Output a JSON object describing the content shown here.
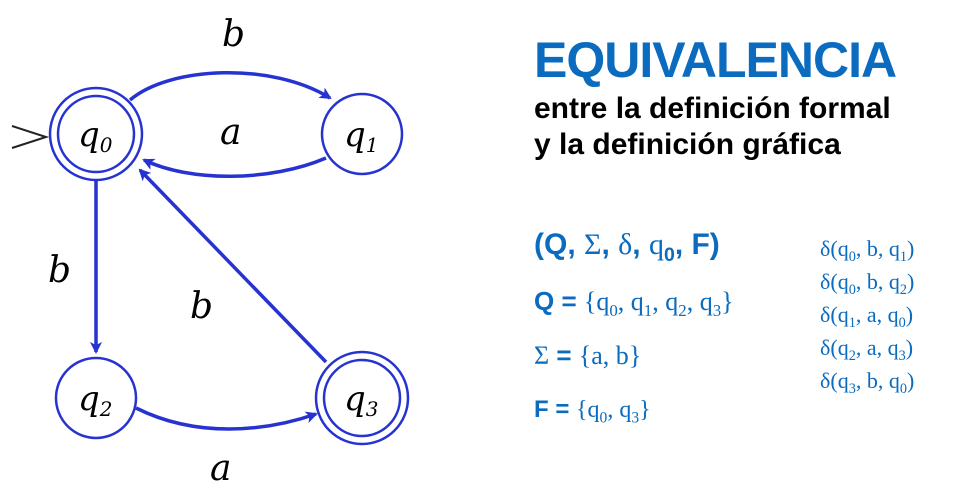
{
  "diagram": {
    "edge_color": "#2733d0",
    "states": [
      {
        "id": "q0",
        "letter": "q",
        "index": "0",
        "initial": true,
        "accepting": true
      },
      {
        "id": "q1",
        "letter": "q",
        "index": "1",
        "initial": false,
        "accepting": false
      },
      {
        "id": "q2",
        "letter": "q",
        "index": "2",
        "initial": false,
        "accepting": false
      },
      {
        "id": "q3",
        "letter": "q",
        "index": "3",
        "initial": false,
        "accepting": true
      }
    ],
    "transitions": [
      {
        "from": "q0",
        "to": "q1",
        "symbol": "b"
      },
      {
        "from": "q1",
        "to": "q0",
        "symbol": "a"
      },
      {
        "from": "q0",
        "to": "q2",
        "symbol": "b"
      },
      {
        "from": "q3",
        "to": "q0",
        "symbol": "b"
      },
      {
        "from": "q2",
        "to": "q3",
        "symbol": "a"
      }
    ],
    "start_marker": ">"
  },
  "heading": {
    "title": "EQUIVALENCIA",
    "subtitle_line1": "entre la definición formal",
    "subtitle_line2": "y la definición gráfica",
    "title_color": "#0a6bbf"
  },
  "formal": {
    "tuple": {
      "open": "(Q, ",
      "sigma": "Σ",
      "comma1": ", ",
      "delta": "δ",
      "comma2": ", ",
      "q": "q",
      "q_sub": "0",
      "close": ", F)"
    },
    "Q": {
      "key": "Q = ",
      "value_open": "{",
      "items": [
        "q0",
        "q1",
        "q2",
        "q3"
      ],
      "value_close": "}"
    },
    "Sigma": {
      "key_symbol": "Σ",
      "key_eq": " = ",
      "open": "{",
      "value": "a, b",
      "close": "}"
    },
    "F": {
      "key": "F = ",
      "open": "{",
      "items": [
        "q0",
        "q3"
      ],
      "close": "}"
    }
  },
  "delta_table": [
    {
      "from": "0",
      "symbol": "b",
      "to": "1"
    },
    {
      "from": "0",
      "symbol": "b",
      "to": "2"
    },
    {
      "from": "1",
      "symbol": "a",
      "to": "0"
    },
    {
      "from": "2",
      "symbol": "a",
      "to": "3"
    },
    {
      "from": "3",
      "symbol": "b",
      "to": "0"
    }
  ]
}
